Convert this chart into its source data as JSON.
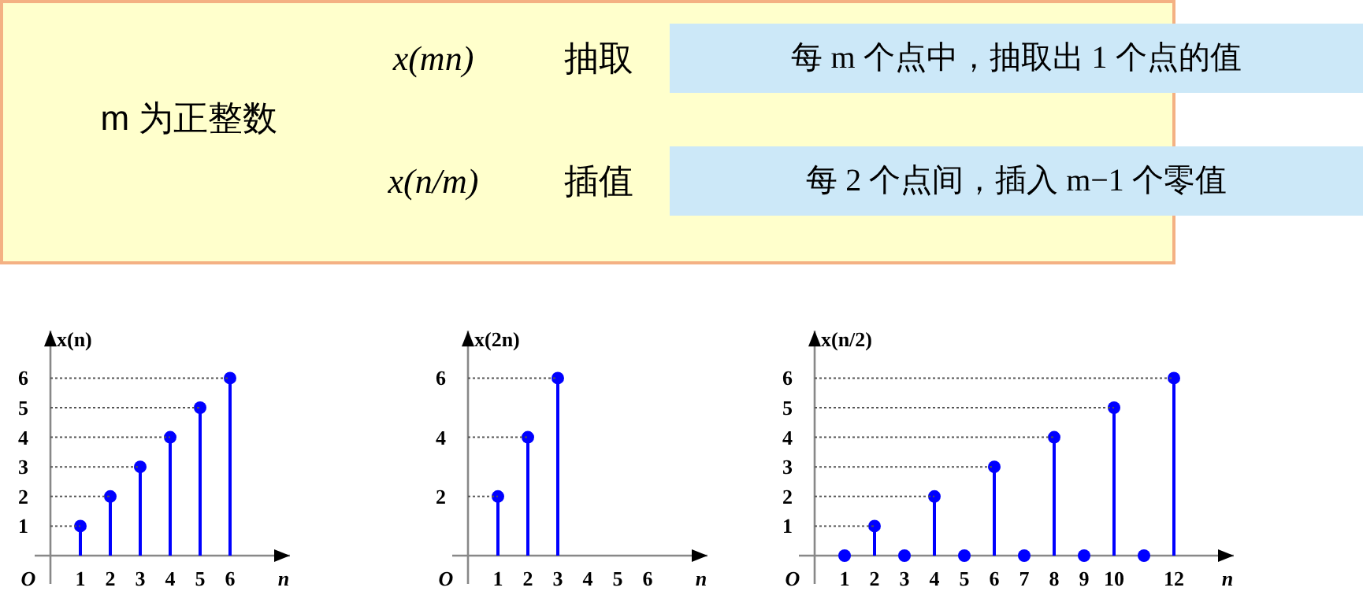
{
  "chart_data": [
    {
      "type": "other",
      "annotations": [
        "m 为正整数",
        "x(mn)",
        "抽取",
        "每 m 个点中，抽取出 1 个点的值",
        "x(n/m)",
        "插值",
        "每 2 个点间，插入 m−1 个零值"
      ]
    },
    {
      "type": "lollipop",
      "x": [
        1,
        2,
        3,
        4,
        5,
        6
      ],
      "series": [
        {
          "color": "#0000ff",
          "values": [
            1,
            2,
            3,
            4,
            5,
            6
          ],
          "marker": "circle"
        },
        {
          "type": "line",
          "x": [
            0,
            1
          ],
          "values": [
            1,
            1
          ],
          "color": "#555555",
          "line_style": "dotted"
        },
        {
          "type": "line",
          "x": [
            0,
            2
          ],
          "values": [
            2,
            2
          ],
          "color": "#555555",
          "line_style": "dotted"
        },
        {
          "type": "line",
          "x": [
            0,
            3
          ],
          "values": [
            3,
            3
          ],
          "color": "#555555",
          "line_style": "dotted"
        },
        {
          "type": "line",
          "x": [
            0,
            4
          ],
          "values": [
            4,
            4
          ],
          "color": "#555555",
          "line_style": "dotted"
        },
        {
          "type": "line",
          "x": [
            0,
            5
          ],
          "values": [
            5,
            5
          ],
          "color": "#555555",
          "line_style": "dotted"
        },
        {
          "type": "line",
          "x": [
            0,
            6
          ],
          "values": [
            6,
            6
          ],
          "color": "#555555",
          "line_style": "dotted"
        }
      ],
      "xlim": [
        0,
        8
      ],
      "ylim": [
        0,
        7.6
      ],
      "xticks": [
        1,
        2,
        3,
        4,
        5,
        6
      ],
      "yticks": [
        1,
        2,
        3,
        4,
        5,
        6
      ],
      "xlabel": "n",
      "ylabel": "x(n)",
      "annotations": [
        "O"
      ]
    },
    {
      "type": "lollipop",
      "x": [
        1,
        2,
        3
      ],
      "series": [
        {
          "color": "#0000ff",
          "values": [
            2,
            4,
            6
          ],
          "marker": "circle"
        },
        {
          "type": "line",
          "x": [
            0,
            1
          ],
          "values": [
            2,
            2
          ],
          "color": "#555555",
          "line_style": "dotted"
        },
        {
          "type": "line",
          "x": [
            0,
            2
          ],
          "values": [
            4,
            4
          ],
          "color": "#555555",
          "line_style": "dotted"
        },
        {
          "type": "line",
          "x": [
            0,
            3
          ],
          "values": [
            6,
            6
          ],
          "color": "#555555",
          "line_style": "dotted"
        }
      ],
      "xlim": [
        0,
        8
      ],
      "ylim": [
        0,
        7.6
      ],
      "xticks": [
        1,
        2,
        3,
        4,
        5,
        6
      ],
      "yticks": [
        2,
        4,
        6
      ],
      "xlabel": "n",
      "ylabel": "x(2n)",
      "annotations": [
        "O"
      ]
    },
    {
      "type": "lollipop",
      "x": [
        1,
        2,
        3,
        4,
        5,
        6,
        7,
        8,
        9,
        10,
        11,
        12
      ],
      "series": [
        {
          "color": "#0000ff",
          "values": [
            0,
            1,
            0,
            2,
            0,
            3,
            0,
            4,
            0,
            5,
            0,
            6
          ],
          "marker": "circle"
        },
        {
          "type": "line",
          "x": [
            0,
            2
          ],
          "values": [
            1,
            1
          ],
          "color": "#555555",
          "line_style": "dotted"
        },
        {
          "type": "line",
          "x": [
            0,
            4
          ],
          "values": [
            2,
            2
          ],
          "color": "#555555",
          "line_style": "dotted"
        },
        {
          "type": "line",
          "x": [
            0,
            6
          ],
          "values": [
            3,
            3
          ],
          "color": "#555555",
          "line_style": "dotted"
        },
        {
          "type": "line",
          "x": [
            0,
            8
          ],
          "values": [
            4,
            4
          ],
          "color": "#555555",
          "line_style": "dotted"
        },
        {
          "type": "line",
          "x": [
            0,
            10
          ],
          "values": [
            5,
            5
          ],
          "color": "#555555",
          "line_style": "dotted"
        },
        {
          "type": "line",
          "x": [
            0,
            12
          ],
          "values": [
            6,
            6
          ],
          "color": "#555555",
          "line_style": "dotted"
        }
      ],
      "xlim": [
        0,
        14
      ],
      "ylim": [
        0,
        7.6
      ],
      "xticks": [
        1,
        2,
        3,
        4,
        5,
        6,
        7,
        8,
        9,
        10,
        12
      ],
      "yticks": [
        1,
        2,
        3,
        4,
        5,
        6
      ],
      "xlabel": "n",
      "ylabel": "x(n/2)",
      "annotations": [
        "O"
      ]
    }
  ]
}
